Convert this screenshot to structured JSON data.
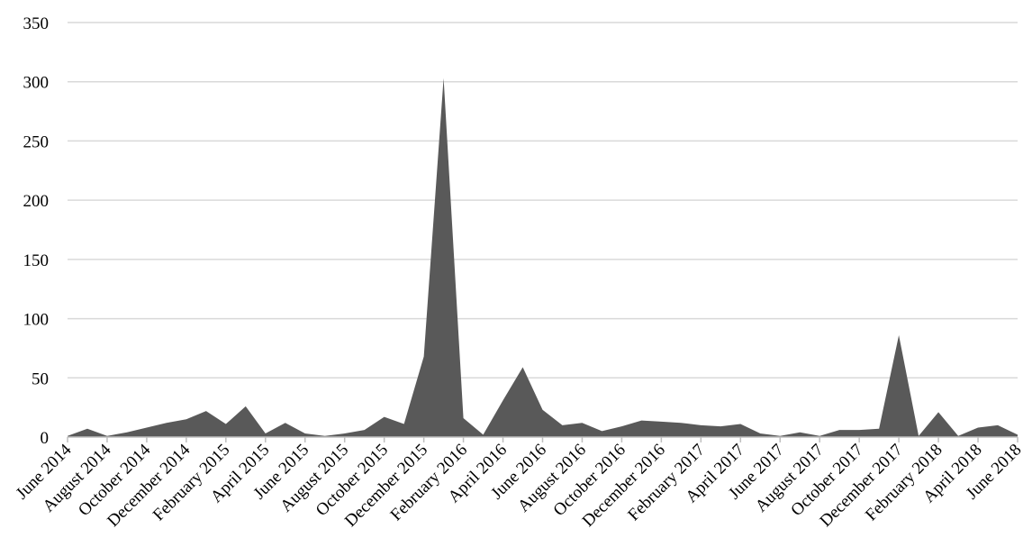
{
  "chart_data": {
    "type": "area",
    "title": "",
    "xlabel": "",
    "ylabel": "",
    "ylim": [
      0,
      350
    ],
    "yticks": [
      0,
      50,
      100,
      150,
      200,
      250,
      300,
      350
    ],
    "grid": true,
    "legend": "none",
    "colors": {
      "fill": "#595959",
      "grid": "#d9d9d9",
      "axis": "#bfbfbf"
    },
    "x_labels": [
      "June 2014",
      "August 2014",
      "October 2014",
      "December 2014",
      "February 2015",
      "April 2015",
      "June 2015",
      "August 2015",
      "October 2015",
      "December 2015",
      "February 2016",
      "April 2016",
      "June 2016",
      "August 2016",
      "October 2016",
      "December 2016",
      "February 2017",
      "April 2017",
      "June 2017",
      "August 2017",
      "October 2017",
      "December 2017",
      "February 2018",
      "April 2018",
      "June 2018"
    ],
    "x": [
      "June 2014",
      "July 2014",
      "August 2014",
      "September 2014",
      "October 2014",
      "November 2014",
      "December 2014",
      "January 2015",
      "February 2015",
      "March 2015",
      "April 2015",
      "May 2015",
      "June 2015",
      "July 2015",
      "August 2015",
      "September 2015",
      "October 2015",
      "November 2015",
      "December 2015",
      "January 2016",
      "February 2016",
      "March 2016",
      "April 2016",
      "May 2016",
      "June 2016",
      "July 2016",
      "August 2016",
      "September 2016",
      "October 2016",
      "November 2016",
      "December 2016",
      "January 2017",
      "February 2017",
      "March 2017",
      "April 2017",
      "May 2017",
      "June 2017",
      "July 2017",
      "August 2017",
      "September 2017",
      "October 2017",
      "November 2017",
      "December 2017",
      "January 2018",
      "February 2018",
      "March 2018",
      "April 2018",
      "May 2018",
      "June 2018"
    ],
    "series": [
      {
        "values": [
          1,
          7,
          1,
          4,
          8,
          12,
          15,
          22,
          11,
          26,
          3,
          12,
          3,
          1,
          3,
          6,
          17,
          11,
          68,
          303,
          16,
          2,
          31,
          59,
          23,
          10,
          12,
          5,
          9,
          14,
          13,
          12,
          10,
          9,
          11,
          3,
          1,
          4,
          1,
          6,
          6,
          7,
          86,
          1,
          21,
          1,
          8,
          10,
          2
        ]
      }
    ]
  }
}
